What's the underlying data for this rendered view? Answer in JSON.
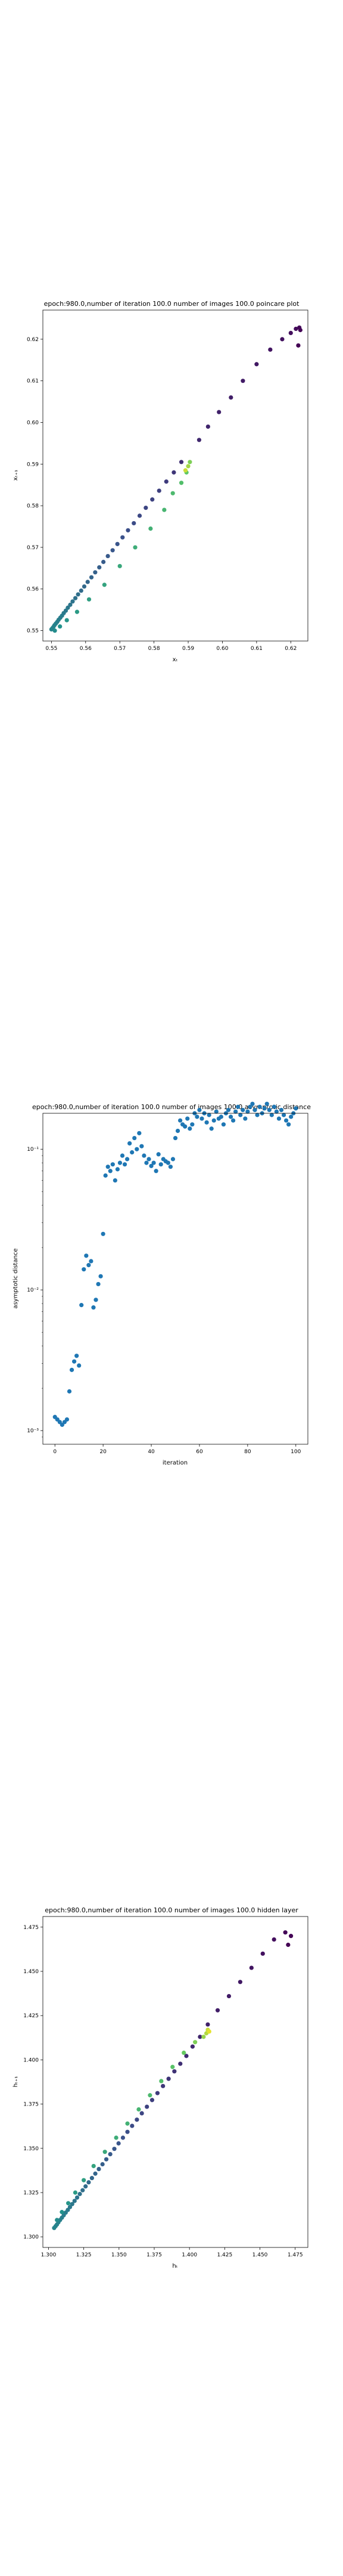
{
  "chart_data": [
    {
      "type": "scatter",
      "title": "epoch:980.0,number of iteration 100.0 number of images 100.0 poincare plot",
      "xlabel": "xₜ",
      "ylabel": "xₜ₊₁",
      "xlim": [
        0.5475,
        0.625
      ],
      "ylim": [
        0.5475,
        0.627
      ],
      "xticks": [
        0.55,
        0.56,
        0.57,
        0.58,
        0.59,
        0.6,
        0.61,
        0.62
      ],
      "yticks": [
        0.55,
        0.56,
        0.57,
        0.58,
        0.59,
        0.6,
        0.61,
        0.62
      ],
      "tick_format": "fixed2",
      "colormap": [
        "#440154",
        "#3b528b",
        "#21918c",
        "#5ec962",
        "#fde725"
      ],
      "x": [
        0.55,
        0.5503,
        0.5506,
        0.5509,
        0.5513,
        0.5517,
        0.5521,
        0.5526,
        0.5531,
        0.5536,
        0.5542,
        0.5548,
        0.5555,
        0.5562,
        0.557,
        0.5578,
        0.5587,
        0.5596,
        0.5606,
        0.5617,
        0.5628,
        0.564,
        0.5652,
        0.5665,
        0.5679,
        0.5693,
        0.5708,
        0.5724,
        0.5741,
        0.5758,
        0.5776,
        0.5795,
        0.5815,
        0.5836,
        0.5858,
        0.588,
        0.5932,
        0.5958,
        0.599,
        0.6025,
        0.606,
        0.61,
        0.614,
        0.6175,
        0.62,
        0.6215,
        0.6225,
        0.6228,
        0.6222,
        0.551,
        0.5525,
        0.5545,
        0.5575,
        0.561,
        0.5655,
        0.57,
        0.5745,
        0.579,
        0.583,
        0.5855,
        0.588,
        0.5895,
        0.5905,
        0.59,
        0.5892
      ],
      "y": [
        0.5503,
        0.5506,
        0.5509,
        0.5513,
        0.5517,
        0.5521,
        0.5526,
        0.5531,
        0.5536,
        0.5542,
        0.5548,
        0.5555,
        0.5562,
        0.557,
        0.5578,
        0.5587,
        0.5596,
        0.5606,
        0.5617,
        0.5628,
        0.564,
        0.5652,
        0.5665,
        0.5679,
        0.5693,
        0.5708,
        0.5724,
        0.5741,
        0.5758,
        0.5776,
        0.5795,
        0.5815,
        0.5836,
        0.5858,
        0.588,
        0.5905,
        0.5958,
        0.599,
        0.6025,
        0.606,
        0.61,
        0.614,
        0.6175,
        0.62,
        0.6215,
        0.6225,
        0.6228,
        0.6222,
        0.6185,
        0.55,
        0.551,
        0.5525,
        0.5545,
        0.5575,
        0.561,
        0.5655,
        0.57,
        0.5745,
        0.579,
        0.583,
        0.5855,
        0.588,
        0.5905,
        0.5895,
        0.5885
      ],
      "c": [
        0.45,
        0.45,
        0.45,
        0.44,
        0.44,
        0.43,
        0.43,
        0.42,
        0.42,
        0.41,
        0.4,
        0.4,
        0.39,
        0.38,
        0.37,
        0.36,
        0.35,
        0.34,
        0.33,
        0.32,
        0.31,
        0.3,
        0.29,
        0.28,
        0.27,
        0.26,
        0.25,
        0.24,
        0.23,
        0.22,
        0.21,
        0.2,
        0.19,
        0.18,
        0.16,
        0.14,
        0.12,
        0.11,
        0.1,
        0.09,
        0.08,
        0.07,
        0.06,
        0.05,
        0.04,
        0.03,
        0.02,
        0.01,
        0.0,
        0.48,
        0.5,
        0.52,
        0.54,
        0.56,
        0.58,
        0.6,
        0.62,
        0.64,
        0.66,
        0.68,
        0.7,
        0.74,
        0.8,
        0.86,
        0.92
      ]
    },
    {
      "type": "scatter",
      "title": "epoch:980.0,number of iteration 100.0  number of images 100.0 asymptotic distance",
      "xlabel": "iteration",
      "ylabel": "asymptotic distance",
      "yscale": "log",
      "xlim": [
        -5,
        105
      ],
      "ylim": [
        0.0008,
        0.18
      ],
      "xticks": [
        0,
        20,
        40,
        60,
        80,
        100
      ],
      "yticks": [
        0.001,
        0.01,
        0.1
      ],
      "ytick_labels": [
        "10⁻³",
        "10⁻²",
        "10⁻¹"
      ],
      "color": "#1f77b4",
      "x": [
        0,
        1,
        2,
        3,
        4,
        5,
        6,
        7,
        8,
        9,
        10,
        11,
        12,
        13,
        14,
        15,
        16,
        17,
        18,
        19,
        20,
        21,
        22,
        23,
        24,
        25,
        26,
        27,
        28,
        29,
        30,
        31,
        32,
        33,
        34,
        35,
        36,
        37,
        38,
        39,
        40,
        41,
        42,
        43,
        44,
        45,
        46,
        47,
        48,
        49,
        50,
        51,
        52,
        53,
        54,
        55,
        56,
        57,
        58,
        59,
        60,
        61,
        62,
        63,
        64,
        65,
        66,
        67,
        68,
        69,
        70,
        71,
        72,
        73,
        74,
        75,
        76,
        77,
        78,
        79,
        80,
        81,
        82,
        83,
        84,
        85,
        86,
        87,
        88,
        89,
        90,
        91,
        92,
        93,
        94,
        95,
        96,
        97,
        98,
        99,
        100
      ],
      "y": [
        0.00125,
        0.0012,
        0.00115,
        0.0011,
        0.00115,
        0.0012,
        0.0019,
        0.0027,
        0.0031,
        0.0034,
        0.0029,
        0.0078,
        0.014,
        0.0175,
        0.015,
        0.016,
        0.0075,
        0.0085,
        0.011,
        0.0125,
        0.025,
        0.065,
        0.075,
        0.07,
        0.078,
        0.06,
        0.072,
        0.08,
        0.09,
        0.078,
        0.085,
        0.11,
        0.095,
        0.12,
        0.1,
        0.13,
        0.105,
        0.09,
        0.08,
        0.085,
        0.076,
        0.08,
        0.07,
        0.092,
        0.078,
        0.085,
        0.082,
        0.08,
        0.075,
        0.085,
        0.12,
        0.135,
        0.16,
        0.15,
        0.145,
        0.165,
        0.14,
        0.15,
        0.18,
        0.17,
        0.19,
        0.165,
        0.18,
        0.155,
        0.175,
        0.14,
        0.16,
        0.185,
        0.165,
        0.17,
        0.15,
        0.18,
        0.19,
        0.17,
        0.16,
        0.185,
        0.2,
        0.175,
        0.19,
        0.165,
        0.185,
        0.2,
        0.21,
        0.19,
        0.175,
        0.2,
        0.18,
        0.195,
        0.21,
        0.19,
        0.175,
        0.2,
        0.185,
        0.165,
        0.19,
        0.175,
        0.16,
        0.15,
        0.17,
        0.18,
        0.195
      ]
    },
    {
      "type": "scatter",
      "title": "epoch:980.0,number of iteration 100.0  number of images 100.0 hidden layer",
      "xlabel": "hₜ",
      "ylabel": "hₜ₊₁",
      "xlim": [
        1.296,
        1.484
      ],
      "ylim": [
        1.294,
        1.481
      ],
      "xticks": [
        1.3,
        1.325,
        1.35,
        1.375,
        1.4,
        1.425,
        1.45,
        1.475
      ],
      "yticks": [
        1.3,
        1.325,
        1.35,
        1.375,
        1.4,
        1.425,
        1.45,
        1.475
      ],
      "tick_format": "fixed3",
      "colormap": [
        "#440154",
        "#3b528b",
        "#21918c",
        "#5ec962",
        "#fde725"
      ],
      "x": [
        1.304,
        1.305,
        1.306,
        1.307,
        1.3082,
        1.3095,
        1.3108,
        1.3122,
        1.3137,
        1.3152,
        1.3168,
        1.3185,
        1.3203,
        1.3222,
        1.3242,
        1.3263,
        1.3285,
        1.3308,
        1.3332,
        1.3357,
        1.3383,
        1.341,
        1.3438,
        1.3467,
        1.3497,
        1.3528,
        1.356,
        1.3593,
        1.3627,
        1.3662,
        1.3698,
        1.3735,
        1.3773,
        1.3812,
        1.3852,
        1.3893,
        1.3935,
        1.3978,
        1.4022,
        1.4075,
        1.413,
        1.42,
        1.428,
        1.436,
        1.444,
        1.452,
        1.46,
        1.468,
        1.472,
        1.47,
        1.306,
        1.3095,
        1.314,
        1.319,
        1.325,
        1.332,
        1.34,
        1.348,
        1.356,
        1.364,
        1.372,
        1.38,
        1.388,
        1.396,
        1.404,
        1.41,
        1.412,
        1.413,
        1.414
      ],
      "y": [
        1.305,
        1.306,
        1.307,
        1.3082,
        1.3095,
        1.3108,
        1.3122,
        1.3137,
        1.3152,
        1.3168,
        1.3185,
        1.3203,
        1.3222,
        1.3242,
        1.3263,
        1.3285,
        1.3308,
        1.3332,
        1.3357,
        1.3383,
        1.341,
        1.3438,
        1.3467,
        1.3497,
        1.3528,
        1.356,
        1.3593,
        1.3627,
        1.3662,
        1.3698,
        1.3735,
        1.3773,
        1.3812,
        1.3852,
        1.3893,
        1.3935,
        1.3978,
        1.4022,
        1.4075,
        1.413,
        1.42,
        1.428,
        1.436,
        1.444,
        1.452,
        1.46,
        1.468,
        1.472,
        1.47,
        1.465,
        1.3095,
        1.314,
        1.319,
        1.325,
        1.332,
        1.34,
        1.348,
        1.356,
        1.364,
        1.372,
        1.38,
        1.388,
        1.396,
        1.404,
        1.41,
        1.413,
        1.415,
        1.417,
        1.416
      ],
      "c": [
        0.45,
        0.45,
        0.44,
        0.44,
        0.43,
        0.43,
        0.42,
        0.42,
        0.41,
        0.4,
        0.4,
        0.39,
        0.38,
        0.37,
        0.36,
        0.35,
        0.34,
        0.33,
        0.32,
        0.31,
        0.3,
        0.29,
        0.28,
        0.27,
        0.26,
        0.25,
        0.24,
        0.23,
        0.22,
        0.21,
        0.2,
        0.19,
        0.18,
        0.17,
        0.16,
        0.15,
        0.14,
        0.13,
        0.12,
        0.11,
        0.1,
        0.09,
        0.08,
        0.07,
        0.06,
        0.05,
        0.04,
        0.02,
        0.01,
        0.0,
        0.48,
        0.5,
        0.52,
        0.54,
        0.56,
        0.58,
        0.6,
        0.62,
        0.64,
        0.66,
        0.68,
        0.7,
        0.72,
        0.76,
        0.8,
        0.84,
        0.88,
        0.92,
        0.96
      ]
    }
  ]
}
